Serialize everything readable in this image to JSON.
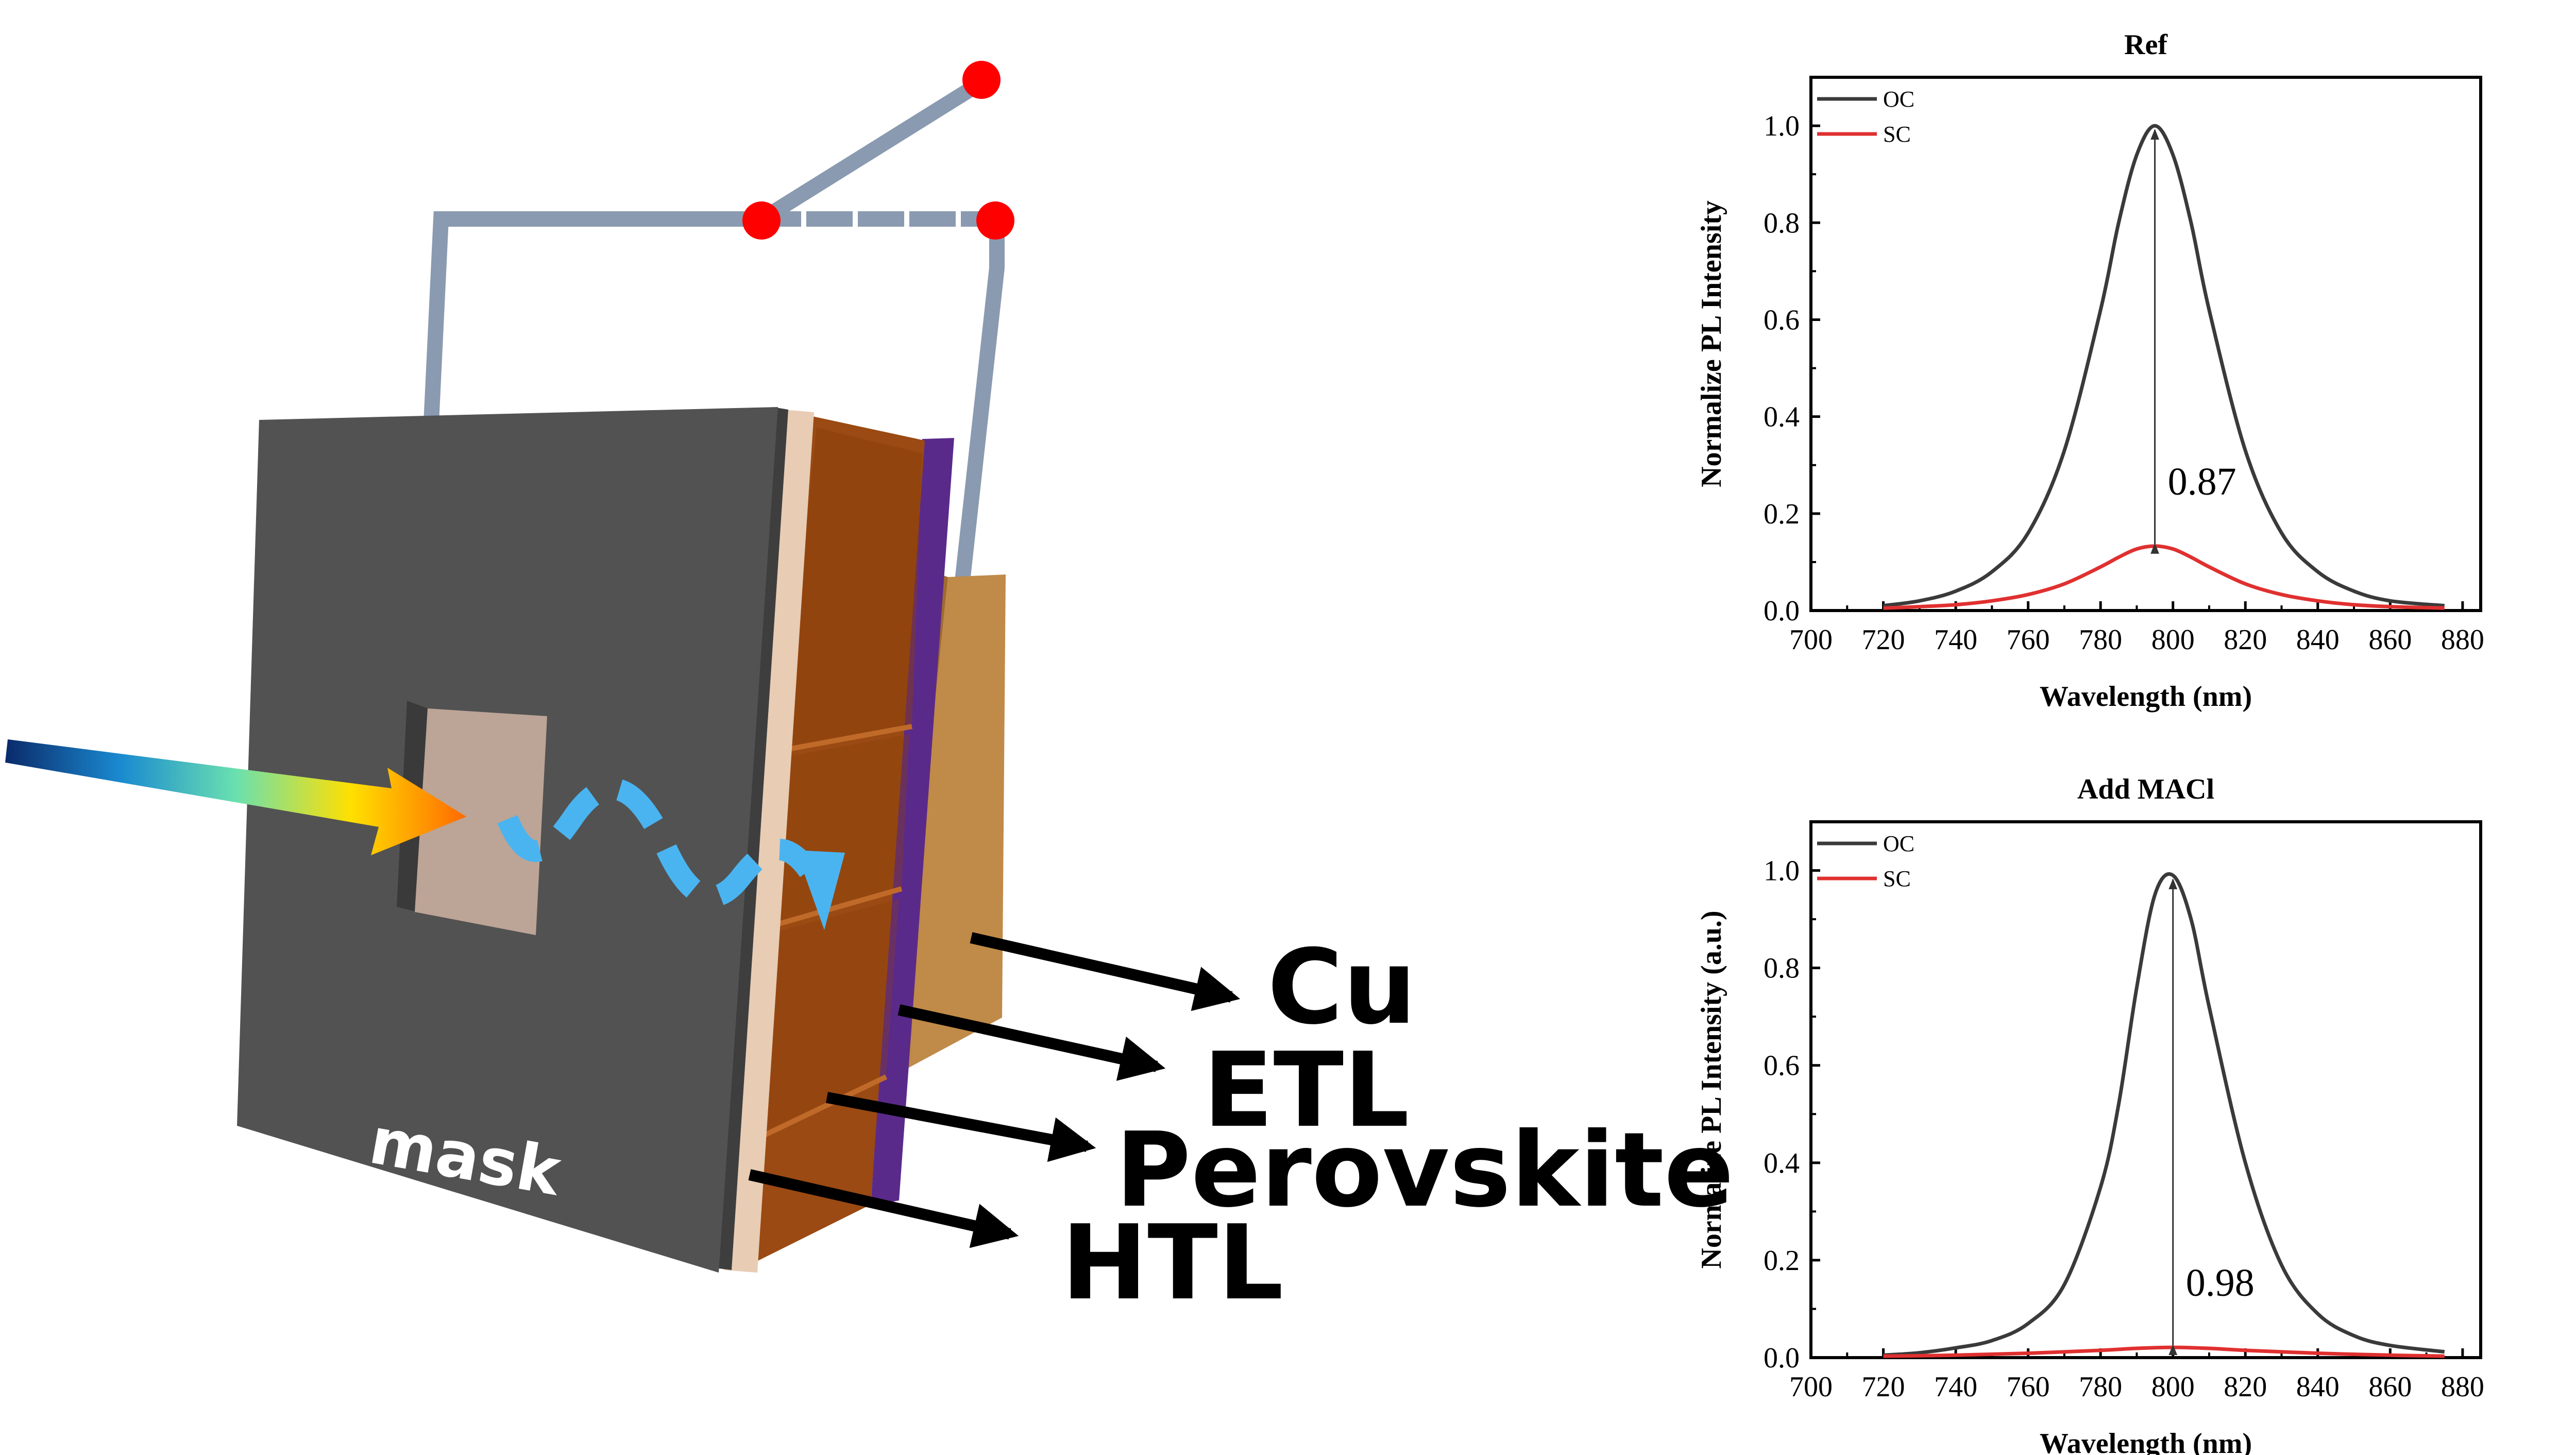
{
  "diagram": {
    "mask_label": "mask",
    "layer_labels": {
      "cu": "Cu",
      "etl": "ETL",
      "perovskite": "Perovskite",
      "htl": "HTL"
    },
    "colors": {
      "mask": "#525252",
      "perovskite_layer": "#9a4a12",
      "etl_layer": "#5a2a8a",
      "cu_layer": "#c08a48",
      "wire": "#8a9ab0",
      "terminal": "#ff0000",
      "photon_path": "#4ab4f0"
    }
  },
  "chart_data": [
    {
      "type": "line",
      "title": "Ref",
      "xlabel": "Wavelength (nm)",
      "ylabel": "Normalize PL Intensity",
      "xlim": [
        700,
        885
      ],
      "ylim": [
        0,
        1.1
      ],
      "xticks": [
        "700",
        "720",
        "740",
        "760",
        "780",
        "800",
        "820",
        "840",
        "860",
        "880"
      ],
      "yticks": [
        "0.0",
        "0.2",
        "0.4",
        "0.6",
        "0.8",
        "1.0"
      ],
      "series": [
        {
          "name": "OC",
          "color": "#3a3a3a",
          "x": [
            720,
            730,
            740,
            750,
            760,
            770,
            780,
            785,
            790,
            795,
            800,
            805,
            810,
            820,
            830,
            840,
            850,
            860,
            875
          ],
          "y": [
            0.01,
            0.02,
            0.04,
            0.08,
            0.16,
            0.33,
            0.62,
            0.8,
            0.94,
            1.0,
            0.94,
            0.8,
            0.62,
            0.33,
            0.16,
            0.08,
            0.04,
            0.02,
            0.01
          ]
        },
        {
          "name": "SC",
          "color": "#e03030",
          "x": [
            720,
            730,
            740,
            750,
            760,
            770,
            780,
            785,
            790,
            795,
            800,
            805,
            810,
            820,
            830,
            840,
            850,
            860,
            875
          ],
          "y": [
            0.005,
            0.008,
            0.012,
            0.02,
            0.033,
            0.055,
            0.09,
            0.11,
            0.127,
            0.133,
            0.127,
            0.11,
            0.09,
            0.055,
            0.033,
            0.02,
            0.012,
            0.008,
            0.005
          ]
        }
      ],
      "annotation": "0.87",
      "legend": "top-left"
    },
    {
      "type": "line",
      "title": "Add MACl",
      "xlabel": "Wavelength (nm)",
      "ylabel": "Normalize PL Intensity (a.u.)",
      "xlim": [
        700,
        885
      ],
      "ylim": [
        0,
        1.1
      ],
      "xticks": [
        "700",
        "720",
        "740",
        "760",
        "780",
        "800",
        "820",
        "840",
        "860",
        "880"
      ],
      "yticks": [
        "0.0",
        "0.2",
        "0.4",
        "0.6",
        "0.8",
        "1.0"
      ],
      "series": [
        {
          "name": "OC",
          "color": "#3a3a3a",
          "x": [
            720,
            730,
            740,
            750,
            760,
            770,
            780,
            785,
            790,
            795,
            800,
            805,
            810,
            820,
            830,
            840,
            850,
            860,
            875
          ],
          "y": [
            0.005,
            0.01,
            0.02,
            0.035,
            0.07,
            0.15,
            0.35,
            0.52,
            0.76,
            0.95,
            0.99,
            0.9,
            0.72,
            0.4,
            0.19,
            0.09,
            0.045,
            0.025,
            0.012
          ]
        },
        {
          "name": "SC",
          "color": "#e03030",
          "x": [
            720,
            740,
            760,
            780,
            790,
            800,
            810,
            820,
            840,
            860,
            875
          ],
          "y": [
            0.003,
            0.005,
            0.009,
            0.015,
            0.019,
            0.021,
            0.019,
            0.015,
            0.009,
            0.005,
            0.003
          ]
        }
      ],
      "annotation": "0.98",
      "legend": "top-left"
    }
  ]
}
